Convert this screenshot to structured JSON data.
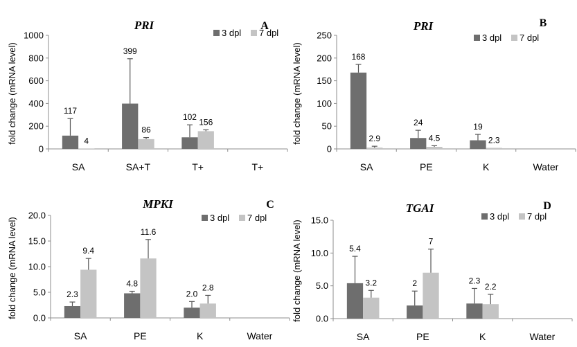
{
  "colors": {
    "series_3dpl": "#6e6e6e",
    "series_7dpl": "#c4c4c4",
    "axis": "#8c8c8c",
    "text": "#000000"
  },
  "chart_data": [
    {
      "type": "bar",
      "title": "PRI",
      "panel_letter": "A",
      "ylabel": "fold change (mRNA level)",
      "ylim": [
        0,
        1000
      ],
      "yticks": [
        "0",
        "200",
        "400",
        "600",
        "800",
        "1000"
      ],
      "categories": [
        "SA",
        "SA+T",
        "T+",
        "T+"
      ],
      "legend": {
        "position": "top-right"
      },
      "series": [
        {
          "name": "3 dpl",
          "values": [
            117,
            399,
            102,
            null
          ],
          "errors": [
            150,
            395,
            110,
            null
          ],
          "labels": [
            "117",
            "399",
            "102",
            ""
          ]
        },
        {
          "name": "7 dpl",
          "values": [
            4,
            86,
            156,
            null
          ],
          "errors": [
            0,
            14,
            12,
            null
          ],
          "labels": [
            "4",
            "86",
            "156",
            ""
          ]
        }
      ]
    },
    {
      "type": "bar",
      "title": "PRI",
      "panel_letter": "B",
      "ylabel": "fold change (mRNA level)",
      "ylim": [
        0,
        250
      ],
      "yticks": [
        "0",
        "50",
        "100",
        "150",
        "200",
        "250"
      ],
      "categories": [
        "SA",
        "PE",
        "K",
        "Water"
      ],
      "legend": {
        "position": "top-right"
      },
      "series": [
        {
          "name": "3 dpl",
          "values": [
            168,
            24,
            19,
            null
          ],
          "errors": [
            18,
            17,
            13,
            null
          ],
          "labels": [
            "168",
            "24",
            "19",
            ""
          ]
        },
        {
          "name": "7 dpl",
          "values": [
            2.9,
            4.5,
            2.3,
            null
          ],
          "errors": [
            3,
            2.5,
            0,
            null
          ],
          "labels": [
            "2.9",
            "4.5",
            "2.3",
            ""
          ]
        }
      ]
    },
    {
      "type": "bar",
      "title": "MPKI",
      "panel_letter": "C",
      "ylabel": "fold change (mRNA level)",
      "ylim": [
        0,
        20
      ],
      "yticks": [
        "0.0",
        "5.0",
        "10.0",
        "15.0",
        "20.0"
      ],
      "categories": [
        "SA",
        "PE",
        "K",
        "Water"
      ],
      "legend": {
        "position": "top-right"
      },
      "series": [
        {
          "name": "3 dpl",
          "values": [
            2.3,
            4.8,
            2.0,
            null
          ],
          "errors": [
            0.8,
            0.4,
            1.2,
            null
          ],
          "labels": [
            "2.3",
            "4.8",
            "2.0",
            ""
          ]
        },
        {
          "name": "7 dpl",
          "values": [
            9.4,
            11.6,
            2.8,
            null
          ],
          "errors": [
            2.2,
            3.7,
            1.6,
            null
          ],
          "labels": [
            "9.4",
            "11.6",
            "2.8",
            ""
          ]
        }
      ]
    },
    {
      "type": "bar",
      "title": "TGAI",
      "panel_letter": "D",
      "ylabel": "fold change (mRNA level)",
      "ylim": [
        0,
        15
      ],
      "yticks": [
        "0.0",
        "5.0",
        "10.0",
        "15.0"
      ],
      "categories": [
        "SA",
        "PE",
        "K",
        "Water"
      ],
      "legend": {
        "position": "top-right"
      },
      "series": [
        {
          "name": "3 dpl",
          "values": [
            5.4,
            2,
            2.3,
            null
          ],
          "errors": [
            4.1,
            2.2,
            2.3,
            null
          ],
          "labels": [
            "5.4",
            "2",
            "2.3",
            ""
          ]
        },
        {
          "name": "7 dpl",
          "values": [
            3.2,
            7,
            2.2,
            null
          ],
          "errors": [
            1.1,
            3.6,
            1.5,
            null
          ],
          "labels": [
            "3.2",
            "7",
            "2.2",
            ""
          ]
        }
      ]
    }
  ]
}
